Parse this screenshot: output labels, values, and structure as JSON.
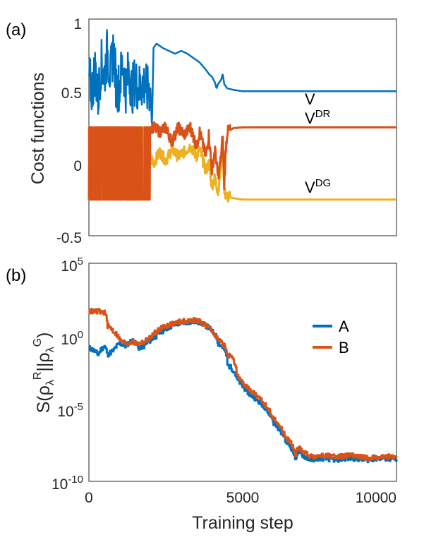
{
  "chart_data": [
    {
      "type": "line",
      "panel_label": "(a)",
      "ylabel": "Cost functions",
      "xlabel": "",
      "xlim": [
        0,
        10000
      ],
      "ylim": [
        -0.5,
        1
      ],
      "yticks": [
        "1",
        "0.5",
        "0",
        "-0.5"
      ],
      "ytick_values": [
        1,
        0.5,
        0,
        -0.5
      ],
      "xticks_shown": false,
      "grid": false,
      "colors": {
        "V": "#0072BD",
        "VDR": "#D95319",
        "VDG": "#EDB120"
      },
      "annotations": {
        "V": {
          "base": "V",
          "sup": ""
        },
        "VDR": {
          "base": "V",
          "sup": "DR"
        },
        "VDG": {
          "base": "V",
          "sup": "DG"
        }
      },
      "series": [
        {
          "key": "V",
          "noisy_until": 2000,
          "x": [
            0,
            100,
            200,
            300,
            400,
            500,
            600,
            700,
            800,
            900,
            1000,
            1100,
            1200,
            1300,
            1400,
            1500,
            1600,
            1700,
            1800,
            1900,
            2000,
            2050,
            2100,
            2200,
            2400,
            2600,
            2800,
            3000,
            3200,
            3400,
            3600,
            3800,
            3900,
            4000,
            4100,
            4150,
            4200,
            4300,
            4350,
            4400,
            4500,
            4700,
            5000,
            6000,
            7000,
            8000,
            9000,
            10000
          ],
          "y": [
            0.6,
            0.5,
            0.65,
            0.45,
            0.7,
            0.6,
            0.78,
            0.6,
            0.8,
            0.5,
            0.55,
            0.7,
            0.52,
            0.65,
            0.5,
            0.58,
            0.52,
            0.54,
            0.55,
            0.5,
            0.52,
            0.25,
            0.8,
            0.83,
            0.8,
            0.78,
            0.76,
            0.78,
            0.76,
            0.73,
            0.7,
            0.65,
            0.62,
            0.6,
            0.56,
            0.52,
            0.55,
            0.58,
            0.62,
            0.55,
            0.52,
            0.51,
            0.5,
            0.5,
            0.5,
            0.5,
            0.5,
            0.5
          ]
        },
        {
          "key": "VDR",
          "noisy_until": 2000,
          "x": [
            0,
            2000,
            2100,
            2300,
            2500,
            2700,
            2900,
            3100,
            3300,
            3500,
            3600,
            3800,
            3900,
            4000,
            4100,
            4200,
            4300,
            4350,
            4400,
            4450,
            4500,
            4700,
            5000,
            6000,
            7000,
            8000,
            9000,
            10000
          ],
          "y": [
            0.25,
            0.25,
            0.25,
            0.22,
            0.25,
            0.15,
            0.25,
            0.2,
            0.25,
            0.12,
            0.22,
            0.05,
            0.2,
            -0.05,
            0.1,
            -0.1,
            0.05,
            0.2,
            -0.15,
            0.1,
            0.22,
            0.245,
            0.25,
            0.25,
            0.25,
            0.25,
            0.25,
            0.25
          ]
        },
        {
          "key": "VDG",
          "noisy_until": 2000,
          "x": [
            0,
            2000,
            2100,
            2300,
            2500,
            2700,
            2900,
            3100,
            3300,
            3500,
            3600,
            3800,
            3900,
            4000,
            4100,
            4200,
            4300,
            4350,
            4400,
            4450,
            4500,
            4700,
            5000,
            6000,
            7000,
            8000,
            9000,
            10000
          ],
          "y": [
            0.1,
            0.05,
            0.0,
            0.08,
            0.02,
            0.1,
            0.05,
            0.08,
            0.12,
            0.05,
            0.1,
            -0.05,
            0.0,
            -0.15,
            -0.1,
            -0.2,
            0.0,
            0.15,
            -0.2,
            -0.22,
            -0.23,
            -0.24,
            -0.25,
            -0.25,
            -0.25,
            -0.25,
            -0.25,
            -0.25
          ]
        }
      ]
    },
    {
      "type": "line",
      "panel_label": "(b)",
      "scale": "log",
      "xlabel": "Training step",
      "ylabel": "S(ρλR||ρλG)",
      "xlim": [
        0,
        10000
      ],
      "ylim": [
        1e-10,
        100000
      ],
      "xticks": [
        "0",
        "5000",
        "10000"
      ],
      "xtick_values": [
        0,
        5000,
        10000
      ],
      "yticks": [
        {
          "base": "10",
          "exp": "5",
          "value": 100000
        },
        {
          "base": "10",
          "exp": "0",
          "value": 1
        },
        {
          "base": "10",
          "exp": "-5",
          "value": 1e-05
        },
        {
          "base": "10",
          "exp": "-10",
          "value": 1e-10
        }
      ],
      "grid": false,
      "legend": {
        "position": "top-right",
        "entries": [
          "A",
          "B"
        ]
      },
      "series": [
        {
          "name": "A",
          "color": "#0072BD",
          "x": [
            0,
            300,
            500,
            600,
            800,
            1000,
            1200,
            1400,
            1600,
            1800,
            2000,
            2200,
            2500,
            3000,
            3500,
            3800,
            4000,
            4200,
            4500,
            4800,
            5000,
            5200,
            5500,
            5800,
            6000,
            6200,
            6400,
            6600,
            6700,
            6800,
            7000,
            7200,
            7500,
            8000,
            8500,
            9000,
            9500,
            10000
          ],
          "y": [
            0.15,
            0.05,
            0.2,
            0.05,
            0.1,
            0.3,
            0.2,
            0.5,
            0.15,
            0.2,
            0.5,
            1,
            3,
            8,
            10,
            5,
            2,
            0.3,
            0.01,
            0.001,
            0.0003,
            0.0001,
            3e-05,
            6e-06,
            1e-06,
            3e-07,
            5e-08,
            1.5e-08,
            3e-09,
            1e-08,
            5e-09,
            3e-09,
            4e-09,
            3e-09,
            4e-09,
            3e-09,
            4e-09,
            3e-09
          ]
        },
        {
          "name": "B",
          "color": "#D95319",
          "x": [
            0,
            300,
            500,
            600,
            800,
            1000,
            1200,
            1400,
            1600,
            1800,
            2000,
            2200,
            2500,
            3000,
            3500,
            3800,
            4000,
            4200,
            4500,
            4800,
            5000,
            5200,
            5500,
            5800,
            6000,
            6200,
            6400,
            6600,
            6700,
            6800,
            7000,
            7200,
            7500,
            8000,
            8500,
            9000,
            9500,
            10000
          ],
          "y": [
            50,
            50,
            40,
            5,
            2,
            0.5,
            0.3,
            0.4,
            0.3,
            0.4,
            0.8,
            2,
            5,
            10,
            12,
            5,
            2,
            0.5,
            0.05,
            0.002,
            0.0005,
            0.0002,
            5e-05,
            1e-05,
            2e-06,
            5e-07,
            1e-07,
            3e-08,
            5e-09,
            2e-08,
            1e-08,
            5e-09,
            6e-09,
            5e-09,
            6e-09,
            4e-09,
            5e-09,
            5e-09
          ]
        }
      ]
    }
  ]
}
